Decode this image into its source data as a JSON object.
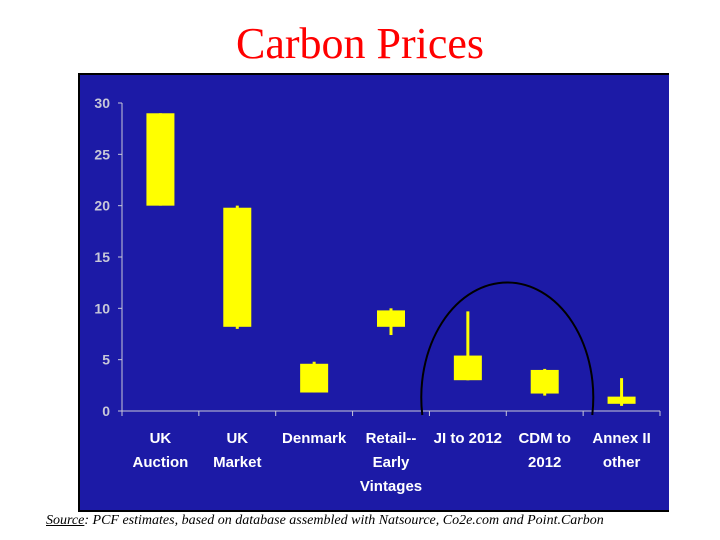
{
  "title": "Carbon Prices",
  "source": {
    "label": "Source",
    "text": ": PCF estimates, based on database assembled with Natsource, Co2e.com and Point.Carbon"
  },
  "colors": {
    "frame": "#000000",
    "plot_area": "#1c1aa6",
    "bar": "#ffff00",
    "label_text": "#ffffff",
    "axis_text": "#c8c8d8",
    "title": "#ff0000",
    "circle": "#000000"
  },
  "chart_data": {
    "type": "bar",
    "subtype": "floating-range",
    "title": "Carbon Prices",
    "xlabel": "",
    "ylabel": "",
    "ylim": [
      0,
      30
    ],
    "yticks": [
      "0",
      "5",
      "10",
      "15",
      "20",
      "25",
      "30"
    ],
    "grid": false,
    "categories": [
      [
        "UK",
        "Auction"
      ],
      [
        "UK",
        "Market"
      ],
      [
        "Denmark"
      ],
      [
        "Retail--",
        "Early",
        "Vintages"
      ],
      [
        "JI to 2012"
      ],
      [
        "CDM to",
        "2012"
      ],
      [
        "Annex II",
        "other"
      ]
    ],
    "ranges": [
      {
        "low": 20,
        "high": 29,
        "whisker_low": 20,
        "whisker_high": 29
      },
      {
        "low": 8.2,
        "high": 19.8,
        "whisker_low": 8,
        "whisker_high": 20
      },
      {
        "low": 1.8,
        "high": 4.6,
        "whisker_low": 1.8,
        "whisker_high": 4.8
      },
      {
        "low": 8.2,
        "high": 9.8,
        "whisker_low": 7.4,
        "whisker_high": 10
      },
      {
        "low": 3,
        "high": 5.4,
        "whisker_low": 3,
        "whisker_high": 9.7
      },
      {
        "low": 1.7,
        "high": 4,
        "whisker_low": 1.5,
        "whisker_high": 4.1
      },
      {
        "low": 0.7,
        "high": 1.4,
        "whisker_low": 0.5,
        "whisker_high": 3.2
      }
    ],
    "annotation": "circle highlighting JI to 2012 and CDM to 2012"
  }
}
